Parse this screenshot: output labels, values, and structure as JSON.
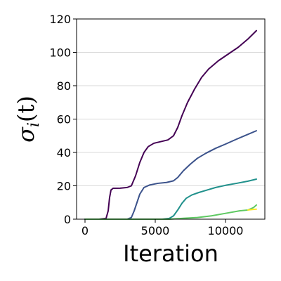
{
  "chart_data": {
    "type": "line",
    "title": "",
    "xlabel": "Iteration",
    "ylabel": "σ_i(t)",
    "ylabel_parts": {
      "sigma": "σ",
      "sub": "i",
      "rest": "(t)"
    },
    "xlim": [
      -600,
      12800
    ],
    "ylim": [
      0,
      120
    ],
    "xticks": [
      0,
      5000,
      10000
    ],
    "yticks": [
      0,
      20,
      40,
      60,
      80,
      100,
      120
    ],
    "grid": "horizontal",
    "legend": "none",
    "series": [
      {
        "color": "#440154",
        "x": [
          0,
          1000,
          1500,
          1650,
          1750,
          1850,
          2000,
          2500,
          3000,
          3300,
          3600,
          3900,
          4200,
          4500,
          4900,
          5400,
          5900,
          6300,
          6600,
          6900,
          7300,
          7800,
          8300,
          8800,
          9500,
          10200,
          10900,
          11600,
          12200
        ],
        "y": [
          0,
          0,
          0.5,
          5,
          13,
          17.5,
          18.5,
          18.6,
          19,
          20,
          26,
          34,
          40,
          43.5,
          45.5,
          46.5,
          47.5,
          50,
          55,
          62,
          70,
          78,
          85,
          90,
          95,
          99,
          103,
          108,
          113
        ]
      },
      {
        "color": "#3b528b",
        "x": [
          0,
          3000,
          3300,
          3500,
          3700,
          3900,
          4200,
          4600,
          5200,
          5800,
          6300,
          6600,
          7000,
          7500,
          8000,
          8600,
          9300,
          10000,
          10800,
          11500,
          12200
        ],
        "y": [
          0,
          0,
          1,
          5,
          10,
          15,
          19,
          20.5,
          21.5,
          22,
          23,
          25,
          29,
          33,
          36.5,
          39.5,
          42.5,
          45,
          48,
          50.5,
          53
        ]
      },
      {
        "color": "#21918c",
        "x": [
          0,
          5500,
          6000,
          6300,
          6600,
          6900,
          7200,
          7600,
          8100,
          8700,
          9300,
          10000,
          10800,
          11600,
          12200
        ],
        "y": [
          0,
          0,
          0.5,
          2,
          5.5,
          9.5,
          12.5,
          14.5,
          16,
          17.5,
          19,
          20.3,
          21.5,
          22.8,
          24
        ]
      },
      {
        "color": "#5ec962",
        "x": [
          0,
          6000,
          7000,
          8000,
          9000,
          10000,
          11000,
          11600,
          12000,
          12200
        ],
        "y": [
          0,
          0,
          0.5,
          1,
          2,
          3.5,
          5,
          5.5,
          7,
          8.5
        ]
      },
      {
        "color": "#fde725",
        "x": [
          11600,
          11900,
          12200
        ],
        "y": [
          5.5,
          5.8,
          6
        ]
      }
    ]
  }
}
